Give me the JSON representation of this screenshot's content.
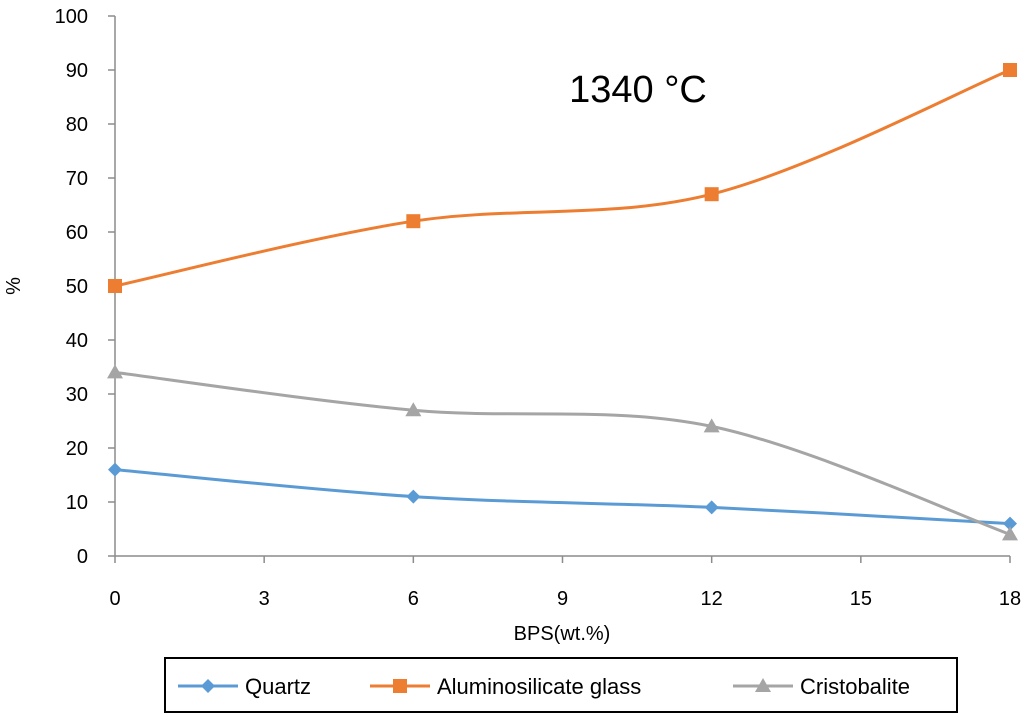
{
  "chart_data": {
    "type": "line",
    "title": "",
    "annotation": "1340 °C",
    "xlabel": "BPS(wt.%)",
    "ylabel": "%",
    "xlim": [
      0,
      18
    ],
    "ylim": [
      0,
      100
    ],
    "xticks": [
      0,
      3,
      6,
      9,
      12,
      15,
      18
    ],
    "yticks": [
      0,
      10,
      20,
      30,
      40,
      50,
      60,
      70,
      80,
      90,
      100
    ],
    "x": [
      0,
      6,
      12,
      18
    ],
    "grid": false,
    "legend_position": "bottom",
    "series": [
      {
        "name": "Quartz",
        "values": [
          16,
          11,
          9,
          6
        ],
        "color": "#5b9bd5",
        "marker": "diamond"
      },
      {
        "name": "Aluminosilicate glass",
        "values": [
          50,
          62,
          67,
          90
        ],
        "color": "#ed7d31",
        "marker": "square"
      },
      {
        "name": "Cristobalite",
        "values": [
          34,
          27,
          24,
          4
        ],
        "color": "#a5a5a5",
        "marker": "triangle"
      }
    ]
  }
}
